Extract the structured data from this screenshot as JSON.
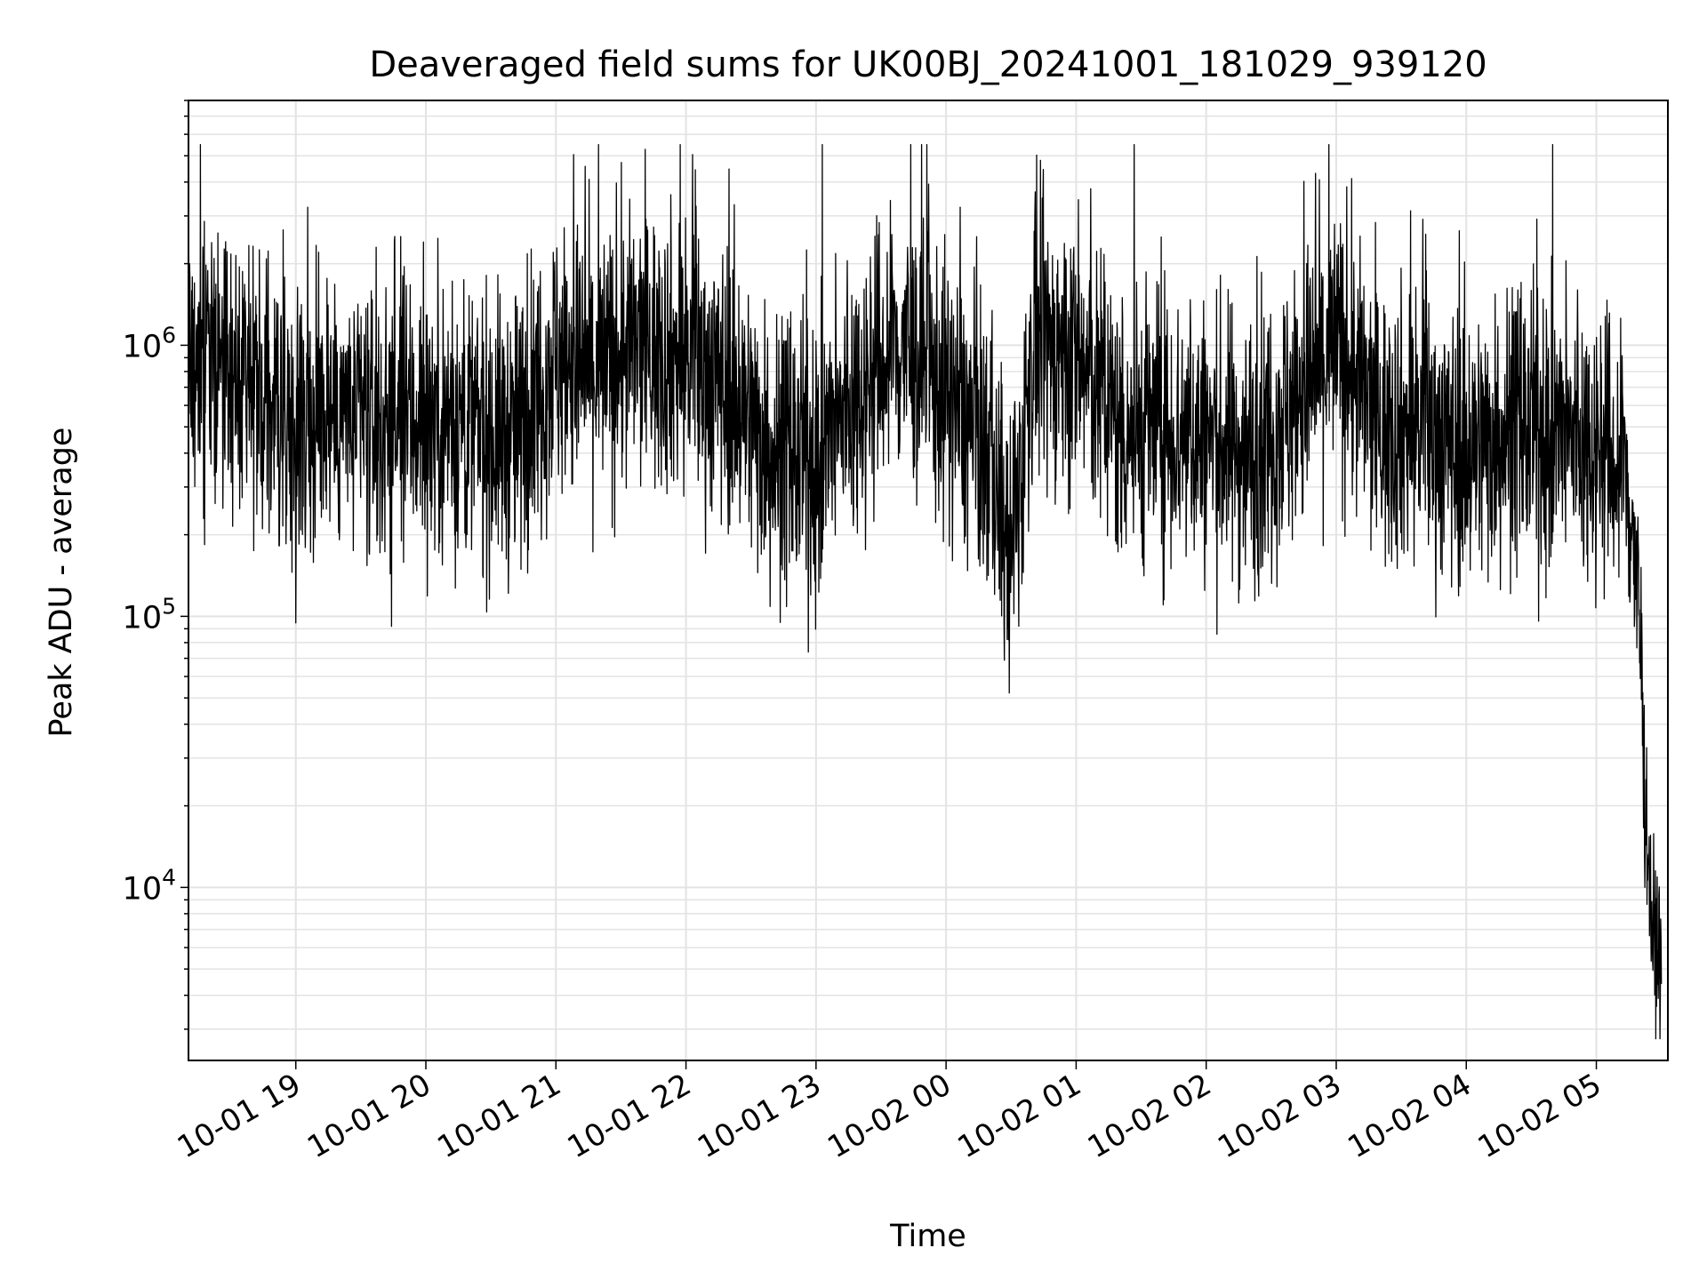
{
  "chart_data": {
    "type": "line",
    "title": "Deaveraged field sums for UK00BJ_20241001_181029_939120",
    "xlabel": "Time",
    "ylabel": "Peak ADU - average",
    "yscale": "log",
    "ylim": [
      2300,
      8000000
    ],
    "xlim": [
      "2024-10-01 18:10:29",
      "2024-10-02 05:33:00"
    ],
    "x_tick_labels": [
      "10-01 19",
      "10-01 20",
      "10-01 21",
      "10-01 22",
      "10-01 23",
      "10-02 00",
      "10-02 01",
      "10-02 02",
      "10-02 03",
      "10-02 04",
      "10-02 05"
    ],
    "x_ticks": [
      "2024-10-01 19:00",
      "2024-10-01 20:00",
      "2024-10-01 21:00",
      "2024-10-01 22:00",
      "2024-10-01 23:00",
      "2024-10-02 00:00",
      "2024-10-02 01:00",
      "2024-10-02 02:00",
      "2024-10-02 03:00",
      "2024-10-02 04:00",
      "2024-10-02 05:00"
    ],
    "y_ticks": [
      {
        "value": 10000,
        "base": "10",
        "exp": "4"
      },
      {
        "value": 100000,
        "base": "10",
        "exp": "5"
      },
      {
        "value": 1000000,
        "base": "10",
        "exp": "6"
      }
    ],
    "grid": true,
    "line_color": "#000000",
    "series": [
      {
        "time": [
          "2024-10-01 18:10",
          "2024-10-01 18:20",
          "2024-10-01 18:40",
          "2024-10-01 19:00",
          "2024-10-01 19:20",
          "2024-10-01 19:40",
          "2024-10-01 20:00",
          "2024-10-01 20:20",
          "2024-10-01 20:40",
          "2024-10-01 21:00",
          "2024-10-01 21:20",
          "2024-10-01 21:40",
          "2024-10-01 22:00",
          "2024-10-01 22:20",
          "2024-10-01 22:40",
          "2024-10-01 23:00",
          "2024-10-01 23:20",
          "2024-10-01 23:40",
          "2024-10-02 00:00",
          "2024-10-02 00:20",
          "2024-10-02 00:30",
          "2024-10-02 00:40",
          "2024-10-02 01:00",
          "2024-10-02 01:20",
          "2024-10-02 01:40",
          "2024-10-02 02:00",
          "2024-10-02 02:20",
          "2024-10-02 02:40",
          "2024-10-02 03:00",
          "2024-10-02 03:20",
          "2024-10-02 03:40",
          "2024-10-02 04:00",
          "2024-10-02 04:20",
          "2024-10-02 04:40",
          "2024-10-02 05:00",
          "2024-10-02 05:15",
          "2024-10-02 05:20",
          "2024-10-02 05:25",
          "2024-10-02 05:30"
        ],
        "values": [
          1000000,
          900000,
          600000,
          500000,
          550000,
          500000,
          550000,
          500000,
          450000,
          900000,
          800000,
          1000000,
          900000,
          700000,
          400000,
          350000,
          700000,
          1000000,
          650000,
          400000,
          150000,
          1000000,
          900000,
          500000,
          500000,
          450000,
          400000,
          600000,
          1000000,
          500000,
          500000,
          400000,
          500000,
          450000,
          450000,
          300000,
          90000,
          8000,
          5000
        ]
      }
    ]
  }
}
